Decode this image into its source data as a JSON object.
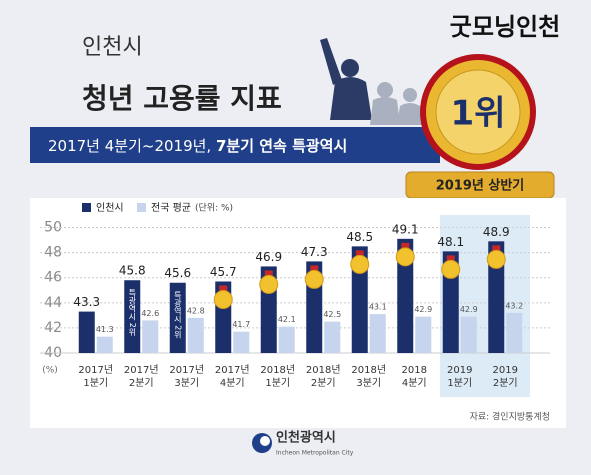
{
  "header": {
    "brand": "굿모닝인천",
    "city": "인천시",
    "title": "청년 고용률 지표",
    "banner": {
      "text": "2017년 4분기~2019년,",
      "highlight": "7분기 연속 특광역시"
    },
    "medal": "1위",
    "medal_ribbon": "2019년 상반기"
  },
  "chart_data": {
    "type": "bar",
    "categories": [
      [
        "2017년",
        "1분기"
      ],
      [
        "2017년",
        "2분기"
      ],
      [
        "2017년",
        "3분기"
      ],
      [
        "2017년",
        "4분기"
      ],
      [
        "2018년",
        "1분기"
      ],
      [
        "2018년",
        "2분기"
      ],
      [
        "2018년",
        "3분기"
      ],
      [
        "2018",
        "4분기"
      ],
      [
        "2019",
        "1분기"
      ],
      [
        "2019",
        "2분기"
      ]
    ],
    "series": [
      {
        "name": "인천시",
        "color": "#1b2f6a",
        "values": [
          43.3,
          45.8,
          45.6,
          45.7,
          46.9,
          47.3,
          48.5,
          49.1,
          48.1,
          48.9
        ]
      },
      {
        "name": "전국 평균",
        "color": "#c6d4ee",
        "values": [
          41.3,
          42.6,
          42.8,
          41.7,
          42.1,
          42.5,
          43.1,
          42.9,
          42.9,
          43.2
        ]
      }
    ],
    "bar_notes": [
      null,
      "특광역시 2위",
      "특광역시 2위",
      null,
      null,
      null,
      null,
      null,
      null,
      null
    ],
    "legend_unit": "(단위: %)",
    "y_unit": "(%)",
    "ylim": [
      40,
      51
    ],
    "yticks": [
      40,
      42,
      44,
      46,
      48,
      50
    ],
    "grid": true
  },
  "footer": {
    "source": "자료: 경인지방통계청",
    "logo": "인천광역시",
    "logo_en": "Incheon Metropolitan City"
  }
}
